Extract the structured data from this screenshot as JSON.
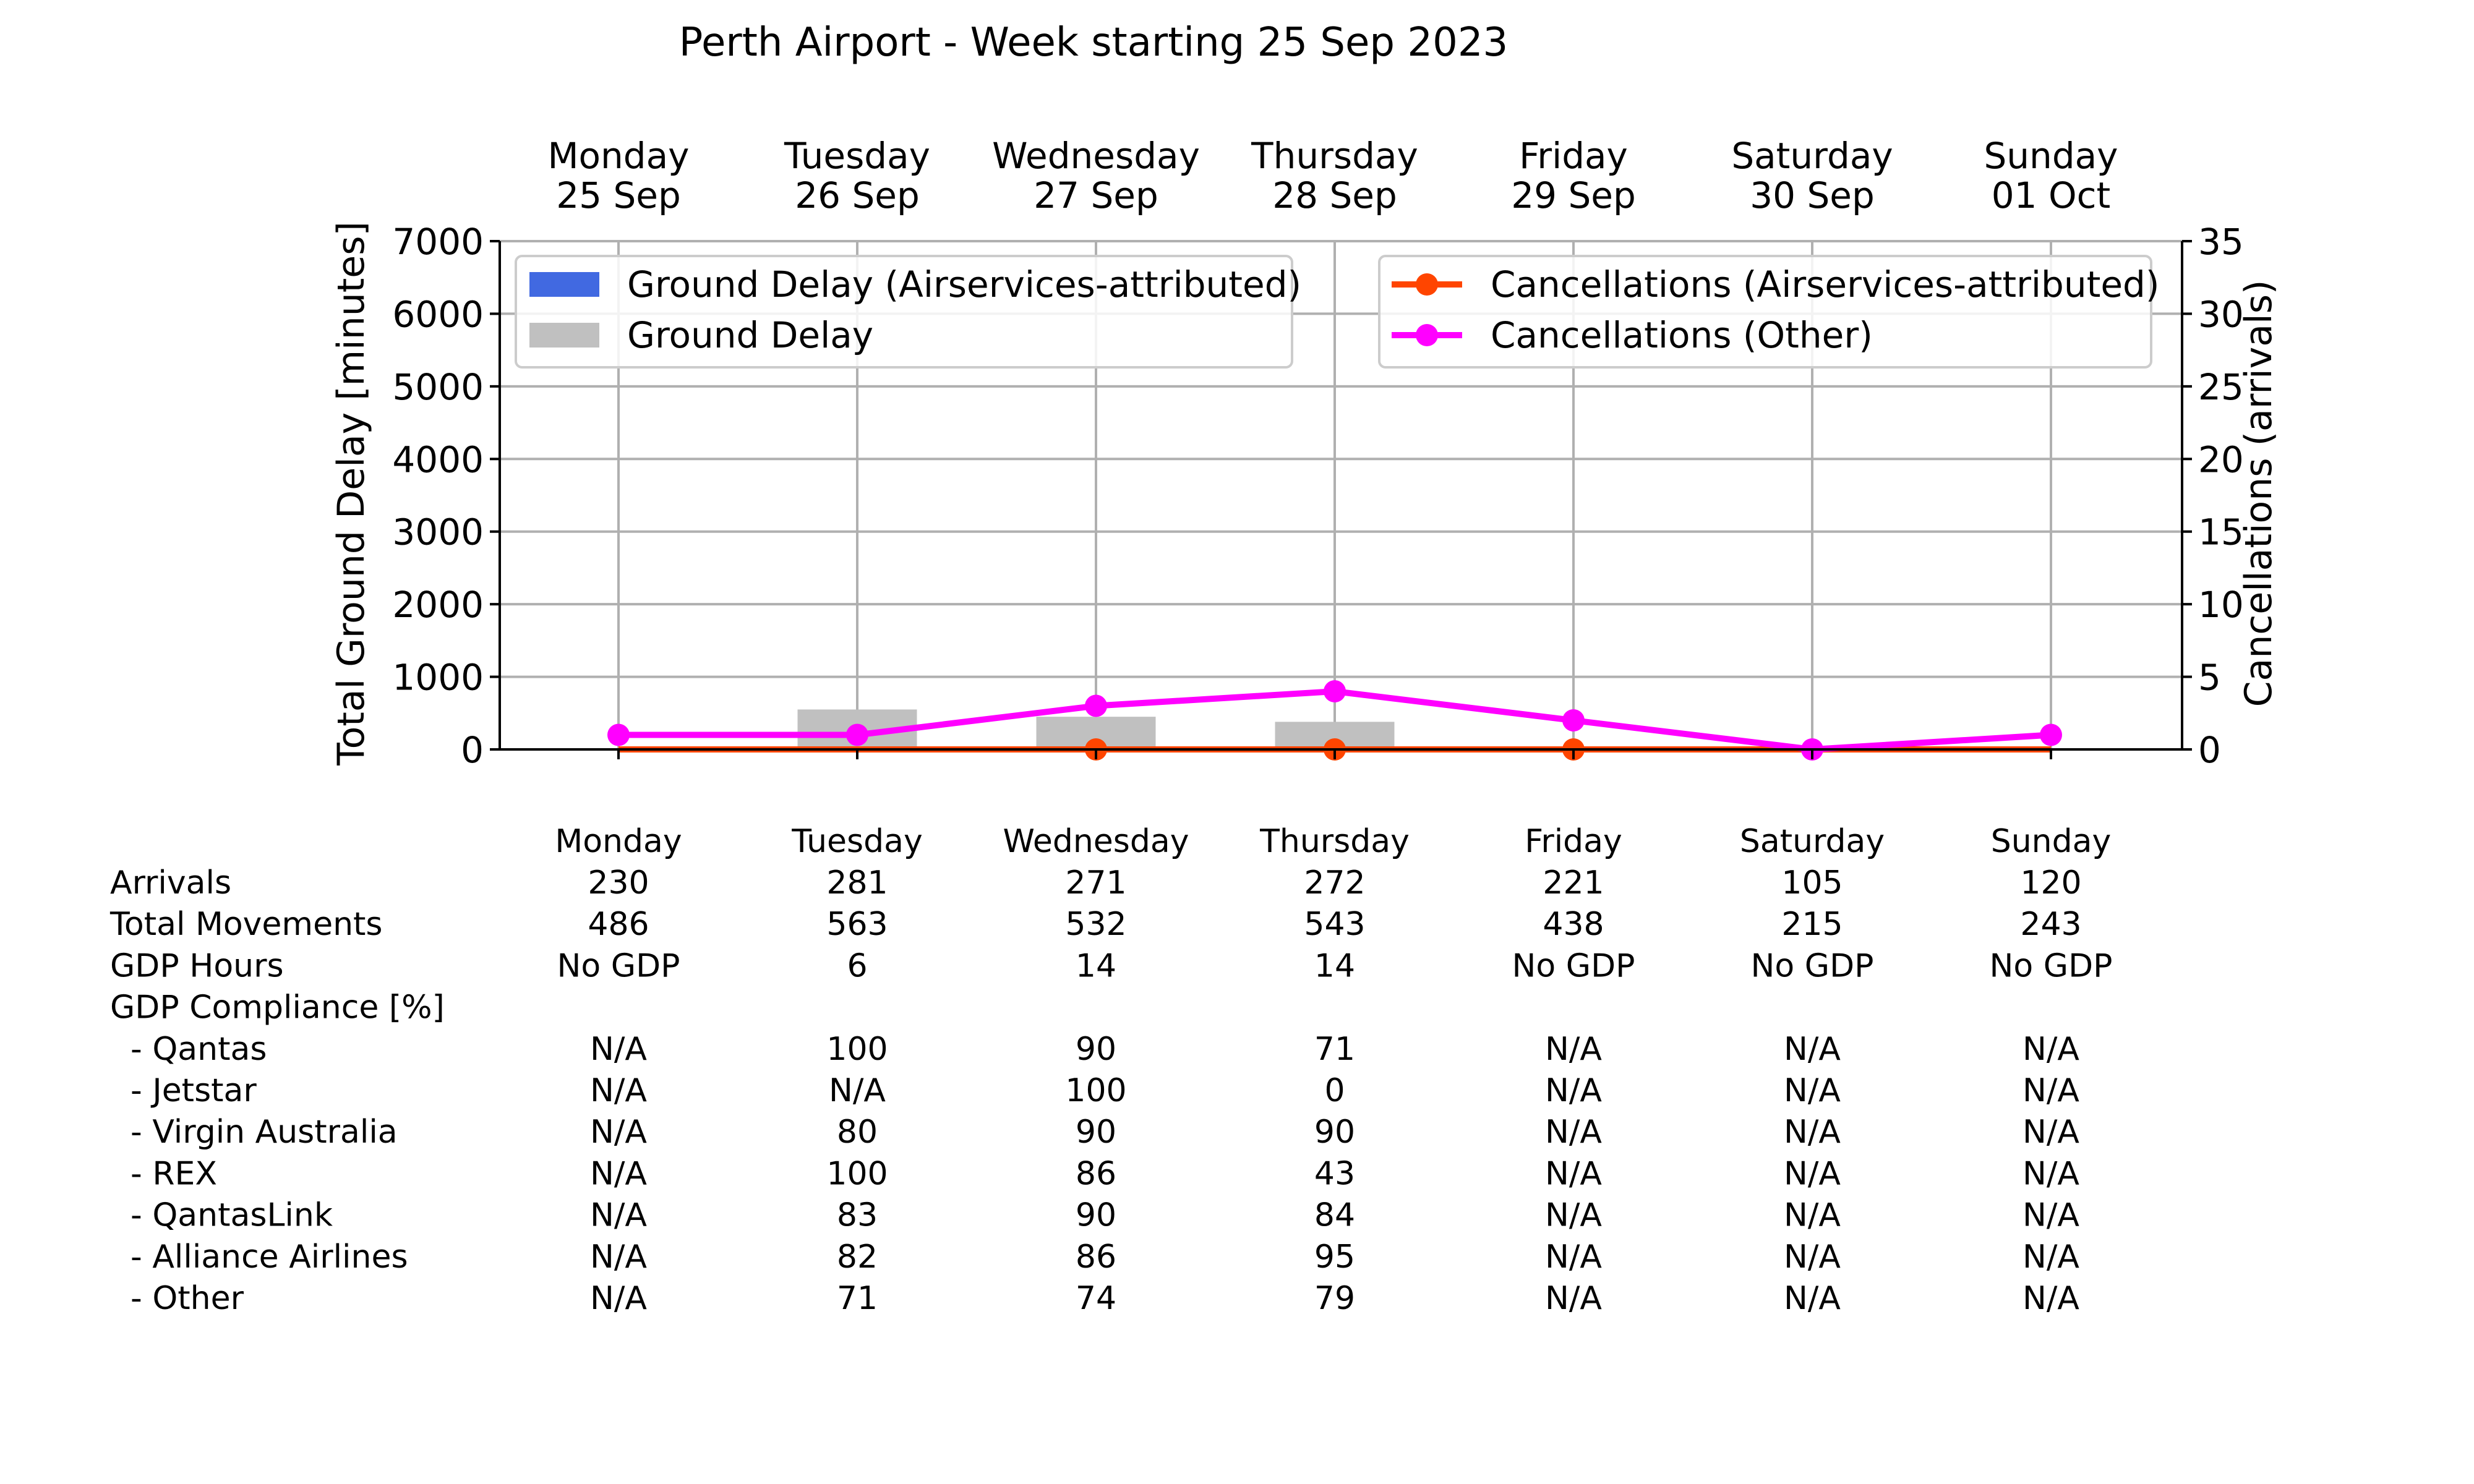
{
  "chart_data": {
    "type": "bar",
    "title": "Perth Airport - Week starting 25 Sep 2023",
    "days": [
      {
        "day": "Monday",
        "date": "25 Sep"
      },
      {
        "day": "Tuesday",
        "date": "26 Sep"
      },
      {
        "day": "Wednesday",
        "date": "27 Sep"
      },
      {
        "day": "Thursday",
        "date": "28 Sep"
      },
      {
        "day": "Friday",
        "date": "29 Sep"
      },
      {
        "day": "Saturday",
        "date": "30 Sep"
      },
      {
        "day": "Sunday",
        "date": "01 Oct"
      }
    ],
    "ylabel_left": "Total Ground Delay [minutes]",
    "ylabel_right": "Cancellations (arrivals)",
    "ylim_left": [
      0,
      7000
    ],
    "ylim_right": [
      0,
      35
    ],
    "yticks_left": [
      "0",
      "1000",
      "2000",
      "3000",
      "4000",
      "5000",
      "6000",
      "7000"
    ],
    "yticks_right": [
      "0",
      "5",
      "10",
      "15",
      "20",
      "25",
      "30",
      "35"
    ],
    "grid": true,
    "bar_series": [
      {
        "name": "Ground Delay (Airservices-attributed)",
        "color": "#4169e1",
        "values": [
          0,
          0,
          0,
          0,
          0,
          0,
          0
        ]
      },
      {
        "name": "Ground Delay",
        "color": "#c0c0c0",
        "values": [
          0,
          550,
          450,
          380,
          0,
          0,
          0
        ]
      }
    ],
    "line_series": [
      {
        "name": "Cancellations (Airservices-attributed)",
        "color": "#ff4500",
        "values": [
          0,
          0,
          0,
          0,
          0,
          0,
          0
        ],
        "markers_on": [
          false,
          false,
          true,
          true,
          true,
          false,
          false
        ]
      },
      {
        "name": "Cancellations (Other)",
        "color": "#ff00ff",
        "values": [
          1,
          1,
          3,
          4,
          2,
          0,
          1
        ],
        "markers_on": [
          true,
          true,
          true,
          true,
          true,
          true,
          true
        ]
      }
    ],
    "legend_left": "top-left",
    "legend_right": "top-right",
    "table": {
      "header": [
        "Monday",
        "Tuesday",
        "Wednesday",
        "Thursday",
        "Friday",
        "Saturday",
        "Sunday"
      ],
      "rows": [
        {
          "label": "Arrivals",
          "values": [
            "230",
            "281",
            "271",
            "272",
            "221",
            "105",
            "120"
          ]
        },
        {
          "label": "Total Movements",
          "values": [
            "486",
            "563",
            "532",
            "543",
            "438",
            "215",
            "243"
          ]
        },
        {
          "label": "GDP Hours",
          "values": [
            "No GDP",
            "6",
            "14",
            "14",
            "No GDP",
            "No GDP",
            "No GDP"
          ]
        },
        {
          "label": "GDP Compliance [%]",
          "values": [
            "",
            "",
            "",
            "",
            "",
            "",
            ""
          ]
        },
        {
          "label": "  - Qantas",
          "values": [
            "N/A",
            "100",
            "90",
            "71",
            "N/A",
            "N/A",
            "N/A"
          ]
        },
        {
          "label": "  - Jetstar",
          "values": [
            "N/A",
            "N/A",
            "100",
            "0",
            "N/A",
            "N/A",
            "N/A"
          ]
        },
        {
          "label": "  - Virgin Australia",
          "values": [
            "N/A",
            "80",
            "90",
            "90",
            "N/A",
            "N/A",
            "N/A"
          ]
        },
        {
          "label": "  - REX",
          "values": [
            "N/A",
            "100",
            "86",
            "43",
            "N/A",
            "N/A",
            "N/A"
          ]
        },
        {
          "label": "  - QantasLink",
          "values": [
            "N/A",
            "83",
            "90",
            "84",
            "N/A",
            "N/A",
            "N/A"
          ]
        },
        {
          "label": "  - Alliance Airlines",
          "values": [
            "N/A",
            "82",
            "86",
            "95",
            "N/A",
            "N/A",
            "N/A"
          ]
        },
        {
          "label": "  - Other",
          "values": [
            "N/A",
            "71",
            "74",
            "79",
            "N/A",
            "N/A",
            "N/A"
          ]
        }
      ]
    }
  }
}
